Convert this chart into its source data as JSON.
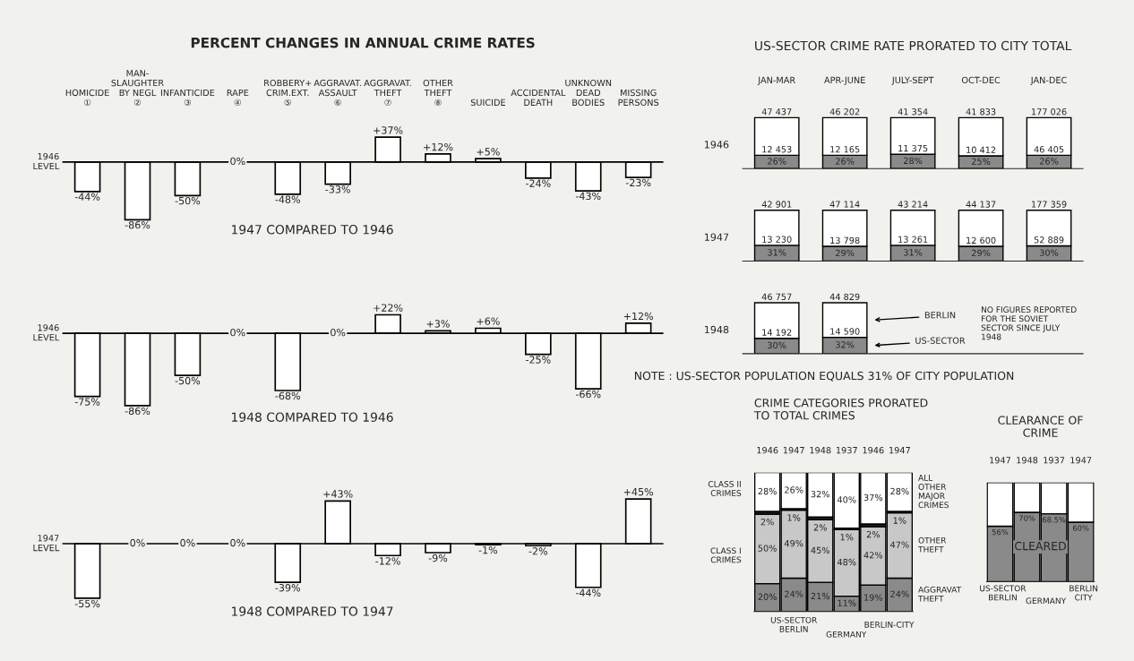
{
  "chart_data": [
    {
      "type": "bar",
      "title": "PERCENT CHANGES IN ANNUAL CRIME RATES",
      "subtitle": "1947 COMPARED TO 1946",
      "ylabel": "1946 LEVEL",
      "tick_labels": "x",
      "categories": [
        "HOMICIDE\n①",
        "MAN-\nSLAUGHTER\nBY NEGL\n②",
        "INFANTICIDE\n③",
        "RAPE\n④",
        "ROBBERY+\nCRIM.EXT.\n⑤",
        "AGGRAVAT.\nASSAULT\n⑥",
        "AGGRAVAT.\nTHEFT\n⑦",
        "OTHER\nTHEFT\n⑧",
        "SUICIDE",
        "ACCIDENTAL\nDEATH",
        "UNKNOWN\nDEAD\nBODIES",
        "MISSING\nPERSONS"
      ],
      "values": [
        -44,
        -86,
        -50,
        0,
        -48,
        -33,
        37,
        12,
        5,
        -24,
        -43,
        -23
      ],
      "value_labels": [
        "-44%",
        "-86%",
        "-50%",
        "0%",
        "-48%",
        "-33%",
        "+37%",
        "+12%",
        "+5%",
        "-24%",
        "-43%",
        "-23%"
      ],
      "color": "#ffffff"
    },
    {
      "type": "bar",
      "subtitle": "1948 COMPARED TO 1946",
      "ylabel": "1946 LEVEL",
      "tick_labels": false,
      "categories": [
        "HOMICIDE\n①",
        "MAN-\nSLAUGHTER\nBY NEGL\n②",
        "INFANTICIDE\n③",
        "RAPE\n④",
        "ROBBERY+\nCRIM.EXT.\n⑤",
        "AGGRAVAT.\nASSAULT\n⑥",
        "AGGRAVAT.\nTHEFT\n⑦",
        "OTHER\nTHEFT\n⑧",
        "SUICIDE",
        "ACCIDENTAL\nDEATH",
        "UNKNOWN\nDEAD\nBODIES",
        "MISSING\nPERSONS"
      ],
      "values": [
        -75,
        -86,
        -50,
        0,
        -68,
        0,
        22,
        3,
        6,
        -25,
        -66,
        12
      ],
      "value_labels": [
        "-75%",
        "-86%",
        "-50%",
        "0%",
        "-68%",
        "0%",
        "+22%",
        "+3%",
        "+6%",
        "-25%",
        "-66%",
        "+12%"
      ],
      "color": "#ffffff"
    },
    {
      "type": "bar",
      "subtitle": "1948 COMPARED TO 1947",
      "ylabel": "1947 LEVEL",
      "tick_labels": false,
      "categories": [
        "HOMICIDE\n①",
        "MAN-\nSLAUGHTER\nBY NEGL\n②",
        "INFANTICIDE\n③",
        "RAPE\n④",
        "ROBBERY+\nCRIM.EXT.\n⑤",
        "AGGRAVAT.\nASSAULT\n⑥",
        "AGGRAVAT.\nTHEFT\n⑦",
        "OTHER\nTHEFT\n⑧",
        "SUICIDE",
        "ACCIDENTAL\nDEATH",
        "UNKNOWN\nDEAD\nBODIES",
        "MISSING\nPERSONS"
      ],
      "values": [
        -55,
        0,
        0,
        0,
        -39,
        43,
        -12,
        -9,
        -1,
        -2,
        -44,
        45
      ],
      "value_labels": [
        "-55%",
        "0%",
        "0%",
        "0%",
        "-39%",
        "+43%",
        "-12%",
        "-9%",
        "-1%",
        "-2%",
        "-44%",
        "+45%"
      ],
      "color": "#ffffff"
    },
    {
      "type": "bar",
      "stacked": true,
      "title": "US-SECTOR CRIME RATE PRORATED TO CITY TOTAL",
      "ylabel": "1946",
      "tick_labels": "x",
      "categories": [
        "JAN-MAR",
        "APR-JUNE",
        "JULY-SEPT",
        "OCT-DEC",
        "JAN-DEC"
      ],
      "series": [
        {
          "color": "#8a8a8a",
          "values": [
            26,
            26,
            28,
            25,
            26
          ],
          "value_labels": [
            "26%",
            "26%",
            "28%",
            "25%",
            "26%"
          ]
        },
        {
          "color": "#ffffff",
          "values": [
            74,
            74,
            72,
            75,
            74
          ]
        }
      ],
      "annotations": [
        {
          "text": "47 437",
          "x": "JAN-MAR",
          "y": 100
        },
        {
          "text": "46 202",
          "x": "APR-JUNE",
          "y": 100
        },
        {
          "text": "41 354",
          "x": "JULY-SEPT",
          "y": 100
        },
        {
          "text": "41 833",
          "x": "OCT-DEC",
          "y": 100
        },
        {
          "text": "177 026",
          "x": "JAN-DEC",
          "y": 100
        },
        {
          "text": "12 453",
          "x": "JAN-MAR",
          "y": 26
        },
        {
          "text": "12 165",
          "x": "APR-JUNE",
          "y": 26
        },
        {
          "text": "11 375",
          "x": "JULY-SEPT",
          "y": 28
        },
        {
          "text": "10 412",
          "x": "OCT-DEC",
          "y": 25
        },
        {
          "text": "46 405",
          "x": "JAN-DEC",
          "y": 26
        }
      ]
    },
    {
      "type": "bar",
      "stacked": true,
      "ylabel": "1947",
      "tick_labels": false,
      "categories": [
        "JAN-MAR",
        "APR-JUNE",
        "JULY-SEPT",
        "OCT-DEC",
        "JAN-DEC"
      ],
      "series": [
        {
          "color": "#8a8a8a",
          "values": [
            31,
            29,
            31,
            29,
            30
          ],
          "value_labels": [
            "31%",
            "29%",
            "31%",
            "29%",
            "30%"
          ]
        },
        {
          "color": "#ffffff",
          "values": [
            69,
            71,
            69,
            71,
            70
          ]
        }
      ],
      "annotations": [
        {
          "text": "42 901",
          "x": "JAN-MAR",
          "y": 100
        },
        {
          "text": "47 114",
          "x": "APR-JUNE",
          "y": 100
        },
        {
          "text": "43 214",
          "x": "JULY-SEPT",
          "y": 100
        },
        {
          "text": "44 137",
          "x": "OCT-DEC",
          "y": 100
        },
        {
          "text": "177 359",
          "x": "JAN-DEC",
          "y": 100
        },
        {
          "text": "13 230",
          "x": "JAN-MAR",
          "y": 31
        },
        {
          "text": "13 798",
          "x": "APR-JUNE",
          "y": 29
        },
        {
          "text": "13 261",
          "x": "JULY-SEPT",
          "y": 31
        },
        {
          "text": "12 600",
          "x": "OCT-DEC",
          "y": 29
        },
        {
          "text": "52 889",
          "x": "JAN-DEC",
          "y": 30
        }
      ]
    },
    {
      "type": "bar",
      "stacked": true,
      "ylabel": "1948",
      "tick_labels": false,
      "legend": "right",
      "categories": [
        "JAN-MAR",
        "APR-JUNE"
      ],
      "series": [
        {
          "name": "US-SECTOR",
          "color": "#8a8a8a",
          "values": [
            30,
            32
          ],
          "value_labels": [
            "30%",
            "32%"
          ]
        },
        {
          "name": "BERLIN",
          "color": "#ffffff",
          "values": [
            70,
            68
          ]
        }
      ],
      "annotations": [
        {
          "text": "46 757",
          "x": "JAN-MAR",
          "y": 100
        },
        {
          "text": "44 829",
          "x": "APR-JUNE",
          "y": 100
        },
        {
          "text": "14 192",
          "x": "JAN-MAR",
          "y": 30
        },
        {
          "text": "14 590",
          "x": "APR-JUNE",
          "y": 32
        },
        "NO FIGURES REPORTED FOR THE SOVIET SECTOR SINCE JULY 1948",
        "NOTE : US-SECTOR POPULATION EQUALS 31% OF CITY POPULATION"
      ]
    },
    {
      "type": "bar",
      "stacked": true,
      "title": "CRIME CATEGORIES PRORATED TO TOTAL CRIMES",
      "tick_labels": "x",
      "categories": [
        "1946",
        "1947",
        "1948",
        "1937",
        "1946",
        "1947"
      ],
      "series": [
        {
          "name": "AGGRAVAT THEFT",
          "color": "#8a8a8a",
          "values": [
            20,
            24,
            21,
            11,
            19,
            24
          ],
          "value_labels": [
            "20%",
            "24%",
            "21%",
            "11%",
            "19%",
            "24%"
          ]
        },
        {
          "name": "OTHER THEFT",
          "color": "#c8c8c8",
          "values": [
            50,
            49,
            45,
            48,
            42,
            47
          ],
          "value_labels": [
            "50%",
            "49%",
            "45%",
            "48%",
            "42%",
            "47%"
          ]
        },
        {
          "color": "#1a1a1a",
          "values": [
            2,
            1,
            2,
            1,
            2,
            1
          ],
          "value_labels": [
            "2%",
            "1%",
            "2%",
            "1%",
            "2%",
            "1%"
          ]
        },
        {
          "name": "ALL OTHER MAJOR CRIMES",
          "color": "#ffffff",
          "values": [
            28,
            26,
            32,
            40,
            37,
            28
          ],
          "value_labels": [
            "28%",
            "26%",
            "32%",
            "40%",
            "37%",
            "28%"
          ]
        }
      ],
      "annotations": [
        "CLASS II CRIMES",
        "CLASS I CRIMES",
        "US-SECTOR BERLIN",
        "GERMANY",
        "BERLIN-CITY"
      ]
    },
    {
      "type": "bar",
      "stacked": true,
      "title": "CLEARANCE OF CRIME",
      "tick_labels": "x",
      "categories": [
        "1947",
        "1948",
        "1937",
        "1947"
      ],
      "series": [
        {
          "name": "CLEARED",
          "color": "#8a8a8a",
          "values": [
            56,
            70,
            68.5,
            60
          ],
          "value_labels": [
            "56%",
            "70%",
            "68.5%",
            "60%"
          ]
        },
        {
          "color": "#ffffff",
          "values": [
            44,
            30,
            31.5,
            40
          ]
        }
      ],
      "annotations": [
        "US-SECTOR BERLIN",
        "GERMANY",
        "BERLIN CITY"
      ]
    }
  ]
}
